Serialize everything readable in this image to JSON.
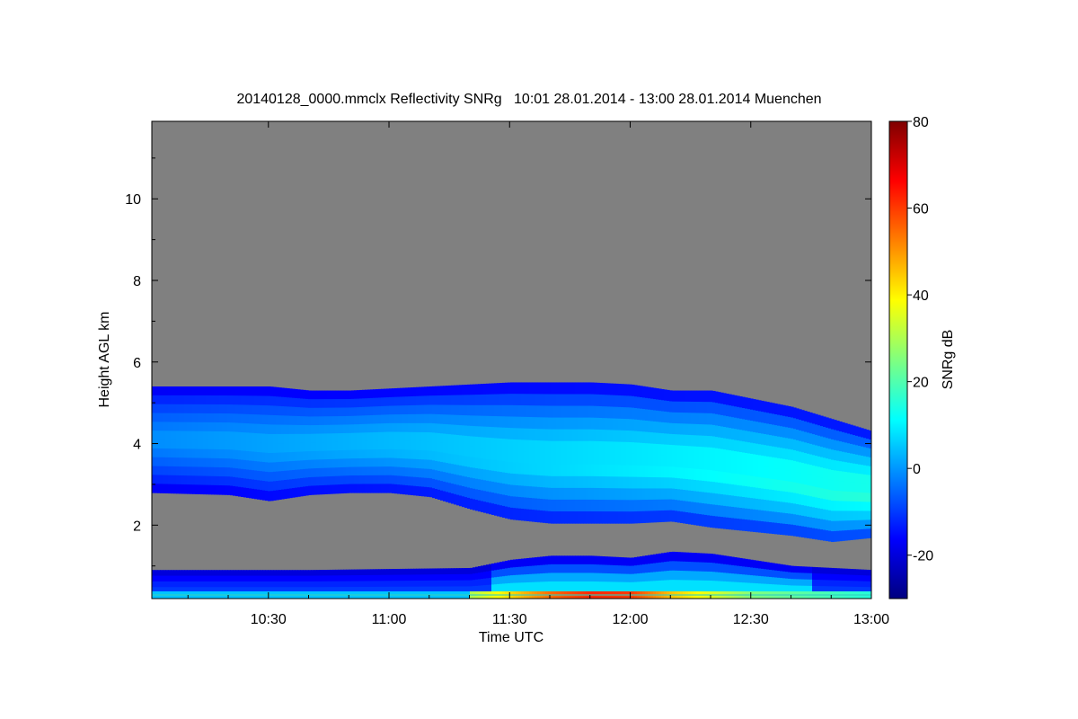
{
  "chart_data": {
    "type": "heatmap",
    "title": "20140128_0000.mmclx Reflectivity SNRg   10:01 28.01.2014 - 13:00 28.01.2014 Muenchen",
    "xlabel": "Time UTC",
    "ylabel": "Height AGL km",
    "x_range": [
      "10:01",
      "13:00"
    ],
    "xlim_minutes_utc": [
      601,
      780
    ],
    "ylim": [
      0.2,
      11.9
    ],
    "x_ticks": [
      {
        "label": "10:30",
        "minutes": 630
      },
      {
        "label": "11:00",
        "minutes": 660
      },
      {
        "label": "11:30",
        "minutes": 690
      },
      {
        "label": "12:00",
        "minutes": 720
      },
      {
        "label": "12:30",
        "minutes": 750
      },
      {
        "label": "13:00",
        "minutes": 780
      }
    ],
    "y_ticks": [
      2,
      4,
      6,
      8,
      10
    ],
    "background_color": "#808080",
    "colorbar": {
      "label": "SNRg dB",
      "range": [
        -30,
        80
      ],
      "ticks": [
        -20,
        0,
        20,
        40,
        60,
        80
      ],
      "colormap": "jet",
      "placement": "right"
    },
    "layers": {
      "main_cloud": {
        "time_minutes": [
          601,
          620,
          630,
          640,
          650,
          660,
          670,
          680,
          690,
          700,
          710,
          720,
          730,
          740,
          750,
          760,
          770,
          780
        ],
        "top_km": [
          5.4,
          5.4,
          5.4,
          5.3,
          5.3,
          5.35,
          5.4,
          5.45,
          5.5,
          5.5,
          5.5,
          5.45,
          5.3,
          5.3,
          5.1,
          4.9,
          4.6,
          4.3
        ],
        "base_km": [
          2.8,
          2.75,
          2.6,
          2.75,
          2.8,
          2.8,
          2.7,
          2.4,
          2.15,
          2.05,
          2.05,
          2.05,
          2.1,
          1.95,
          1.85,
          1.75,
          1.6,
          1.7
        ],
        "peak_snr_db": 25
      },
      "low_cloud": {
        "time_minutes": [
          601,
          640,
          680,
          690,
          700,
          710,
          720,
          730,
          740,
          750,
          760,
          780
        ],
        "top_km": [
          0.9,
          0.9,
          0.95,
          1.15,
          1.25,
          1.25,
          1.2,
          1.35,
          1.3,
          1.15,
          1.0,
          0.9
        ],
        "base_km": 0.2,
        "peak_snr_db": 12
      },
      "surface_echo": {
        "time_minutes": [
          680,
          700,
          710,
          720,
          730,
          750,
          780
        ],
        "peak_snr_db": [
          30,
          55,
          62,
          60,
          45,
          25,
          15
        ]
      }
    }
  }
}
